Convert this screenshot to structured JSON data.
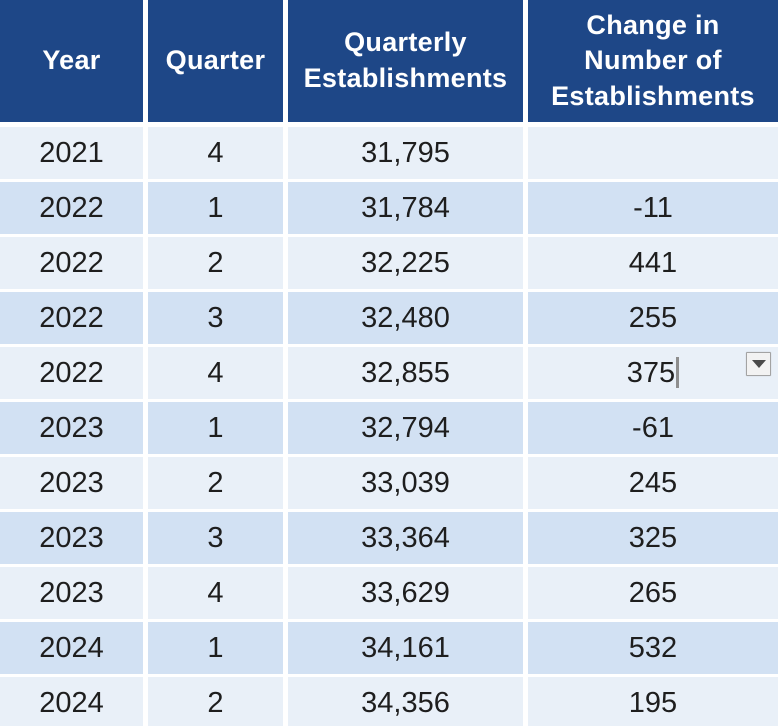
{
  "colors": {
    "header_bg": "#1E4787",
    "row_light": "#E9F0F8",
    "row_dark": "#D2E1F3",
    "grid_lines": "#FFFFFF",
    "header_text": "#FFFFFF",
    "body_text": "#1E1E1E",
    "caret": "#8E8E8E",
    "dropdown_bg": "#F2F2F2",
    "dropdown_border": "#A3A3A3",
    "dropdown_arrow": "#4A4A4A"
  },
  "header": {
    "year": "Year",
    "quarter": "Quarter",
    "quarterly_establishments": "Quarterly\nEstablishments",
    "change": "Change in\nNumber of\nEstablishments"
  },
  "editor": {
    "active_value": "375",
    "active_row_index": 4,
    "dropdown_icon": "dropdown-arrow-icon"
  },
  "rows": [
    {
      "year": "2021",
      "quarter": "4",
      "establishments": "31,795",
      "change": ""
    },
    {
      "year": "2022",
      "quarter": "1",
      "establishments": "31,784",
      "change": "-11"
    },
    {
      "year": "2022",
      "quarter": "2",
      "establishments": "32,225",
      "change": "441"
    },
    {
      "year": "2022",
      "quarter": "3",
      "establishments": "32,480",
      "change": "255"
    },
    {
      "year": "2022",
      "quarter": "4",
      "establishments": "32,855",
      "change": "375",
      "editing": true
    },
    {
      "year": "2023",
      "quarter": "1",
      "establishments": "32,794",
      "change": "-61"
    },
    {
      "year": "2023",
      "quarter": "2",
      "establishments": "33,039",
      "change": "245"
    },
    {
      "year": "2023",
      "quarter": "3",
      "establishments": "33,364",
      "change": "325"
    },
    {
      "year": "2023",
      "quarter": "4",
      "establishments": "33,629",
      "change": "265"
    },
    {
      "year": "2024",
      "quarter": "1",
      "establishments": "34,161",
      "change": "532"
    },
    {
      "year": "2024",
      "quarter": "2",
      "establishments": "34,356",
      "change": "195"
    }
  ]
}
